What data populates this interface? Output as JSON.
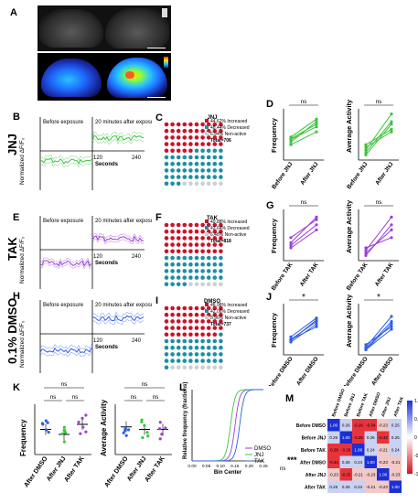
{
  "panels": {
    "A": "A",
    "B": "B",
    "C": "C",
    "D": "D",
    "E": "E",
    "F": "F",
    "G": "G",
    "H": "H",
    "I": "I",
    "J": "J",
    "K": "K",
    "L": "L",
    "M": "M"
  },
  "rows": {
    "jnj": "JNJ",
    "tak": "TAK",
    "dmso": "0.1% DMSO"
  },
  "traces": {
    "ylabel": "Normalized ΔF/F₀",
    "before": "Before exposure",
    "after": "20 minutes after exposure",
    "xlabel": "Seconds",
    "tick120": "120",
    "tick240": "240"
  },
  "waffles": [
    {
      "title": "JNJ",
      "lines": [
        "44.62%  Increased",
        "48.44%  Decreased",
        "6.94%  Non-active"
      ],
      "total": "Total=706",
      "inc": 0.4462,
      "dec": 0.4844
    },
    {
      "title": "TAK",
      "lines": [
        "49.88%  Increased",
        "43.64%  Decreased",
        "6.48%  Non-active"
      ],
      "total": "Total=818",
      "inc": 0.4988,
      "dec": 0.4364
    },
    {
      "title": "DMSO",
      "lines": [
        "48.98%  Increased",
        "42.06%  Decreased",
        "8.96%  Non-active"
      ],
      "total": "Total=737",
      "inc": 0.4898,
      "dec": 0.4206
    }
  ],
  "paired": {
    "freq": "Frequency",
    "act": "Average Activity",
    "ns": "ns",
    "star": "*",
    "jnj": [
      "Before JNJ",
      "After JNJ"
    ],
    "tak": [
      "Before TAK",
      "After TAK"
    ],
    "dmso": [
      "Before DMSO",
      "After DMSO"
    ]
  },
  "k": {
    "freq": "Frequency",
    "act": "Average Activity",
    "ns": "ns",
    "cats": [
      "After DMSO",
      "After JNJ",
      "After TAK"
    ]
  },
  "l": {
    "ylabel": "Relative frequency (fractions)",
    "xlabel": "Bin Center",
    "legend": [
      "DMSO",
      "JNJ",
      "TAK"
    ],
    "sig": "***",
    "ns": "ns",
    "ticks": [
      "0.00",
      "0.05",
      "0.10",
      "0.15",
      "0.20",
      "0.25"
    ]
  },
  "m": {
    "rows": [
      "Before DMSO",
      "Before JNJ",
      "Before TAK",
      "After DMSO",
      "After JNJ",
      "After TAK"
    ],
    "cols": [
      "Before DMSO",
      "Before JNJ",
      "Before TAK",
      "After DMSO",
      "After JNJ",
      "After TAK"
    ],
    "values": [
      [
        "1.00",
        "0.26",
        "-0.26",
        "-0.34",
        "-0.23",
        "0.25"
      ],
      [
        "0.26",
        "1.00",
        "-0.26",
        "0.26",
        "-0.32",
        "0.25"
      ],
      [
        "-0.26",
        "-0.26",
        "1.00",
        "0.24",
        "-0.21",
        "0.24"
      ],
      [
        "-0.34",
        "0.26",
        "0.24",
        "1.00",
        "-0.23",
        "-0.21"
      ],
      [
        "-0.23",
        "-0.32",
        "-0.21",
        "-0.23",
        "1.00",
        "-0.23"
      ],
      [
        "0.25",
        "0.25",
        "0.24",
        "-0.21",
        "-0.23",
        "1.00"
      ]
    ],
    "scale": [
      "1.0",
      "0.5",
      "0",
      "-0.5",
      "-1.0"
    ]
  },
  "colors": {
    "green": "#3cc43c",
    "purple": "#9b3fd6",
    "blue": "#2f5fe6",
    "red": "#c8142a",
    "teal": "#1e8fa3"
  }
}
